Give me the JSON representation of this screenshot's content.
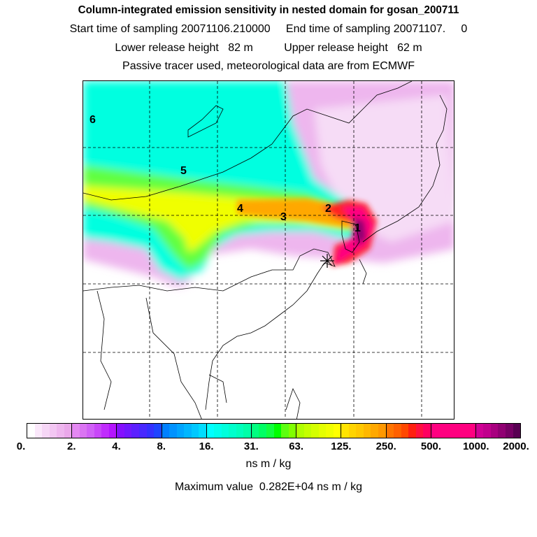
{
  "header": {
    "title": "Column-integrated emission sensitivity in nested domain for gosan_200711",
    "sampling": "Start time of sampling 20071106.210000     End time of sampling 20071107.     0",
    "release": "Lower release height   82 m          Upper release height   62 m",
    "info": "Passive tracer used, meteorological data are from ECMWF"
  },
  "map": {
    "day_labels": [
      "1",
      "2",
      "3",
      "4",
      "5",
      "6"
    ],
    "receptor_marker": "star-icon"
  },
  "colorbar": {
    "ticks": [
      "0.",
      "2.",
      "4.",
      "8.",
      "16.",
      "31.",
      "63.",
      "125.",
      "250.",
      "500.",
      "1000.",
      "2000."
    ],
    "unit": "ns m / kg",
    "colors": [
      [
        "#ffffff",
        "#fbe8fb",
        "#f6d6f6",
        "#f2c6f2",
        "#eeb6ee",
        "#eaa8ea"
      ],
      [
        "#e488f2",
        "#da74f2",
        "#d060f6",
        "#c846f8",
        "#c02cfc",
        "#b414ff"
      ],
      [
        "#8410ff",
        "#7018ff",
        "#5c20ff",
        "#4828ff",
        "#3430ff",
        "#1e44ff"
      ],
      [
        "#0080ff",
        "#0092ff",
        "#00a4ff",
        "#00b6ff",
        "#00c8ff",
        "#00dcff"
      ],
      [
        "#00ffff",
        "#00ffec",
        "#00ffdc",
        "#00ffcc",
        "#00ffbc",
        "#00ffa8"
      ],
      [
        "#00ff80",
        "#00ff64",
        "#10ff40",
        "#00ff00",
        "#5cff10",
        "#80ff00"
      ],
      [
        "#b0ff00",
        "#c4ff00",
        "#d4ff00",
        "#e4ff00",
        "#f0ff00",
        "#ffff00"
      ],
      [
        "#ffe400",
        "#ffd400",
        "#ffc800",
        "#ffb800",
        "#ffa800",
        "#ff9800"
      ],
      [
        "#ff7400",
        "#ff6000",
        "#ff4800",
        "#ff2010",
        "#ff1040",
        "#ff0060"
      ],
      [
        "#ff0080",
        "#ff0080",
        "#ff0080",
        "#ff0080",
        "#ff0080",
        "#ff0080"
      ],
      [
        "#d00094",
        "#c0008c",
        "#a8007f",
        "#900072",
        "#760064",
        "#580052"
      ]
    ]
  },
  "max_value": "Maximum value  0.282E+04 ns m / kg"
}
